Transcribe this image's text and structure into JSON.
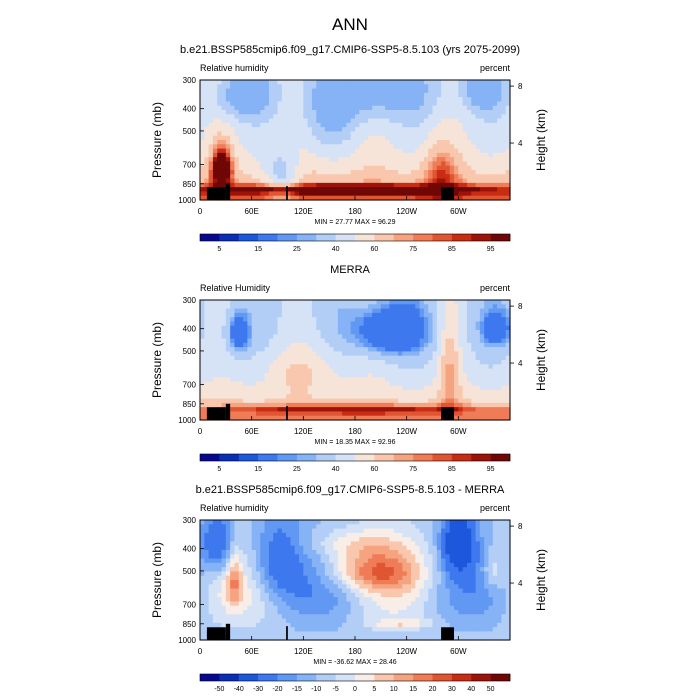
{
  "figure": {
    "title": "ANN"
  },
  "chart_data": [
    {
      "type": "heatmap",
      "title": "b.e21.BSSP585cmip6.f09_g17.CMIP6-SSP5-8.5.103 (yrs 2075-2099)",
      "left_label": "Relative humidity",
      "right_label": "percent",
      "ylabel": "Pressure (mb)",
      "y2label": "Height (km)",
      "x_ticks": [
        "0",
        "60E",
        "120E",
        "180",
        "120W",
        "60W"
      ],
      "x_tick_values": [
        0,
        60,
        120,
        180,
        240,
        300
      ],
      "xlim": [
        0,
        360
      ],
      "y_ticks": [
        "300",
        "400",
        "500",
        "700",
        "850",
        "1000"
      ],
      "y_tick_values": [
        300,
        400,
        500,
        700,
        850,
        1000
      ],
      "ylim": [
        1000,
        300
      ],
      "y2_ticks": [
        "4",
        "8"
      ],
      "y2_tick_values": [
        4,
        8
      ],
      "stats": "MIN = 27.77  MAX = 96.29",
      "min": 27.77,
      "max": 96.29,
      "colorbar_labels": [
        "5",
        "15",
        "25",
        "40",
        "60",
        "75",
        "85",
        "95"
      ],
      "levels": [
        5,
        10,
        15,
        20,
        25,
        30,
        40,
        50,
        60,
        70,
        75,
        80,
        85,
        90,
        95
      ],
      "features": [
        {
          "x": 25,
          "p": 720,
          "w": 12,
          "h": 150,
          "v": 58
        },
        {
          "x": 50,
          "p": 350,
          "w": 30,
          "h": 80,
          "v": -30
        },
        {
          "x": 95,
          "p": 800,
          "w": 20,
          "h": 200,
          "v": -25
        },
        {
          "x": 150,
          "p": 450,
          "w": 30,
          "h": 150,
          "v": -15
        },
        {
          "x": 200,
          "p": 330,
          "w": 70,
          "h": 110,
          "v": -28
        },
        {
          "x": 280,
          "p": 760,
          "w": 20,
          "h": 200,
          "v": 25
        },
        {
          "x": 330,
          "p": 330,
          "w": 25,
          "h": 80,
          "v": -25
        },
        {
          "x": 175,
          "p": 900,
          "w": 170,
          "h": 45,
          "v": 48
        }
      ]
    },
    {
      "type": "heatmap",
      "title": "MERRA",
      "left_label": "Relative Humidity",
      "right_label": "percent",
      "ylabel": "Pressure (mb)",
      "y2label": "Height (km)",
      "x_ticks": [
        "0",
        "60E",
        "120E",
        "180",
        "120W",
        "60W"
      ],
      "x_tick_values": [
        0,
        60,
        120,
        180,
        240,
        300
      ],
      "xlim": [
        0,
        360
      ],
      "y_ticks": [
        "300",
        "400",
        "500",
        "700",
        "850",
        "1000"
      ],
      "y_tick_values": [
        300,
        400,
        500,
        700,
        850,
        1000
      ],
      "ylim": [
        1000,
        300
      ],
      "y2_ticks": [
        "4",
        "8"
      ],
      "y2_tick_values": [
        4,
        8
      ],
      "stats": "MIN = 18.35  MAX = 92.96",
      "min": 18.35,
      "max": 92.96,
      "colorbar_labels": [
        "5",
        "15",
        "25",
        "40",
        "60",
        "75",
        "85",
        "95"
      ],
      "levels": [
        5,
        10,
        15,
        20,
        25,
        30,
        40,
        50,
        60,
        70,
        75,
        80,
        85,
        90,
        95
      ],
      "features": [
        {
          "x": 45,
          "p": 420,
          "w": 12,
          "h": 80,
          "v": -35
        },
        {
          "x": 120,
          "p": 600,
          "w": 50,
          "h": 150,
          "v": 15
        },
        {
          "x": 220,
          "p": 410,
          "w": 40,
          "h": 100,
          "v": -45
        },
        {
          "x": 290,
          "p": 600,
          "w": 12,
          "h": 300,
          "v": 25
        },
        {
          "x": 345,
          "p": 400,
          "w": 18,
          "h": 70,
          "v": -30
        },
        {
          "x": 175,
          "p": 900,
          "w": 170,
          "h": 45,
          "v": 30
        }
      ]
    },
    {
      "type": "heatmap",
      "title": "b.e21.BSSP585cmip6.f09_g17.CMIP6-SSP5-8.5.103 - MERRA",
      "left_label": "Relative humidity",
      "right_label": "percent",
      "ylabel": "Pressure (mb)",
      "y2label": "Height (km)",
      "x_ticks": [
        "0",
        "60E",
        "120E",
        "180",
        "120W",
        "60W"
      ],
      "x_tick_values": [
        0,
        60,
        120,
        180,
        240,
        300
      ],
      "xlim": [
        0,
        360
      ],
      "y_ticks": [
        "300",
        "400",
        "500",
        "700",
        "850",
        "1000"
      ],
      "y_tick_values": [
        300,
        400,
        500,
        700,
        850,
        1000
      ],
      "ylim": [
        1000,
        300
      ],
      "y2_ticks": [
        "4",
        "8"
      ],
      "y2_tick_values": [
        4,
        8
      ],
      "stats": "MIN = -36.62  MAX = 28.46",
      "min": -36.62,
      "max": 28.46,
      "colorbar_labels": [
        "-50",
        "-40",
        "-30",
        "-20",
        "-15",
        "-10",
        "-5",
        "0",
        "5",
        "10",
        "15",
        "20",
        "30",
        "40",
        "50"
      ],
      "levels": [
        -50,
        -40,
        -30,
        -20,
        -15,
        -10,
        -5,
        0,
        5,
        10,
        15,
        20,
        30,
        40,
        50
      ],
      "features": [
        {
          "x": 20,
          "p": 380,
          "w": 20,
          "h": 120,
          "v": -22
        },
        {
          "x": 90,
          "p": 450,
          "w": 30,
          "h": 200,
          "v": -18
        },
        {
          "x": 200,
          "p": 500,
          "w": 55,
          "h": 100,
          "v": 22
        },
        {
          "x": 175,
          "p": 380,
          "w": 60,
          "h": 60,
          "v": 10
        },
        {
          "x": 300,
          "p": 380,
          "w": 18,
          "h": 120,
          "v": -35
        },
        {
          "x": 340,
          "p": 500,
          "w": 12,
          "h": 100,
          "v": 10
        },
        {
          "x": 40,
          "p": 550,
          "w": 8,
          "h": 150,
          "v": 15
        },
        {
          "x": 235,
          "p": 850,
          "w": 35,
          "h": 40,
          "v": 10
        }
      ]
    }
  ],
  "colors": {
    "abs_scale": [
      "#07088f",
      "#0a2fb5",
      "#1d57dc",
      "#3e78ee",
      "#6198f3",
      "#86b3f5",
      "#b2cef6",
      "#d6e2f5",
      "#f6e4d8",
      "#f8c7ad",
      "#f6a381",
      "#ef7c56",
      "#e05532",
      "#c82d14",
      "#9e1309",
      "#6f0707"
    ],
    "diff_scale": [
      "#07088f",
      "#0a2fb5",
      "#1d57dc",
      "#3e78ee",
      "#6198f3",
      "#86b3f5",
      "#b2cef6",
      "#d6e2f5",
      "#f8eee7",
      "#f8c7ad",
      "#f6a381",
      "#ef7c56",
      "#e05532",
      "#c82d14",
      "#9e1309",
      "#6f0707"
    ],
    "land": "#000000"
  }
}
